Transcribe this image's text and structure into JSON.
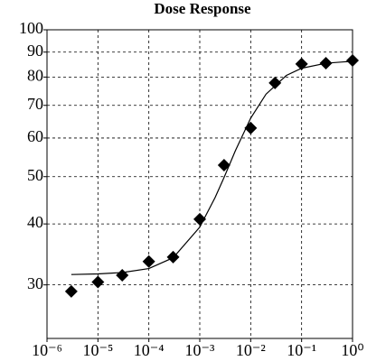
{
  "chart_data": {
    "type": "scatter",
    "title": "Dose Response",
    "xscale": "log",
    "yscale": "log",
    "grid": true,
    "xlim": [
      1e-06,
      1
    ],
    "ylim": [
      23.3,
      100
    ],
    "xticks": [
      {
        "value": 1e-06,
        "label": "10⁻⁶"
      },
      {
        "value": 1e-05,
        "label": "10⁻⁵"
      },
      {
        "value": 0.0001,
        "label": "10⁻⁴"
      },
      {
        "value": 0.001,
        "label": "10⁻³"
      },
      {
        "value": 0.01,
        "label": "10⁻²"
      },
      {
        "value": 0.1,
        "label": "10⁻¹"
      },
      {
        "value": 1,
        "label": "10⁰"
      }
    ],
    "yticks": [
      30,
      40,
      50,
      60,
      70,
      80,
      90,
      100
    ],
    "series": [
      {
        "color": "#000000",
        "marker": "diamond",
        "x": [
          3e-06,
          1e-05,
          3e-05,
          0.0001,
          0.0003,
          0.001,
          0.003,
          0.01,
          0.03,
          0.1,
          0.3,
          1
        ],
        "values": [
          29.1,
          30.4,
          31.4,
          33.5,
          34.2,
          40.9,
          52.8,
          62.9,
          77.8,
          85.1,
          85.4,
          86.5
        ]
      },
      {
        "color": "#000000",
        "marker": "line",
        "x": [
          3e-06,
          1e-05,
          3e-05,
          0.0001,
          0.0003,
          0.001,
          0.002,
          0.003,
          0.005,
          0.01,
          0.02,
          0.05,
          0.1,
          0.3,
          1
        ],
        "values": [
          31.5,
          31.6,
          31.8,
          32.4,
          34.1,
          39.4,
          45.3,
          49.8,
          56.5,
          65.9,
          73.8,
          80.6,
          83.4,
          85.4,
          86.2
        ]
      }
    ]
  }
}
